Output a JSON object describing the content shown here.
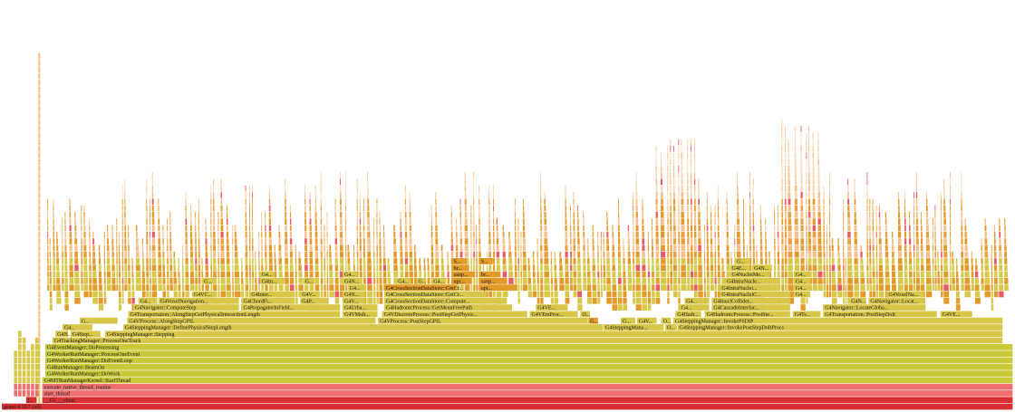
{
  "chart_data": {
    "type": "flamegraph",
    "title": "",
    "xlabel": "",
    "ylabel": "",
    "depth_levels": 54,
    "colors": {
      "root": "#d83030",
      "native": "#f07070",
      "run_manager": "#c9c93a",
      "mid": "#d8c84a",
      "upper": "#e29a28",
      "hot": "#e85a6a",
      "tip": "#f5c08a"
    },
    "frames": [
      {
        "label": "geant-4.10.5 (all)",
        "start": 0.0,
        "end": 1.0,
        "depth": 0,
        "kind": "root"
      },
      {
        "label": "[...",
        "start": 0.024,
        "end": 0.035,
        "depth": 1,
        "kind": "root"
      },
      {
        "label": "__GI___clone",
        "start": 0.04,
        "end": 1.0,
        "depth": 1,
        "kind": "root"
      },
      {
        "label": "start_thread",
        "start": 0.04,
        "end": 1.0,
        "depth": 2,
        "kind": "native"
      },
      {
        "label": "execute_native_thread_routine",
        "start": 0.04,
        "end": 1.0,
        "depth": 3,
        "kind": "native"
      },
      {
        "label": "G4MTRunManagerKernel::StartThread",
        "start": 0.04,
        "end": 1.0,
        "depth": 4,
        "kind": "run_manager"
      },
      {
        "label": "G4WorkerRunManager::DoWork",
        "start": 0.043,
        "end": 1.0,
        "depth": 5,
        "kind": "run_manager"
      },
      {
        "label": "G4RunManager::BeamOn",
        "start": 0.043,
        "end": 1.0,
        "depth": 6,
        "kind": "run_manager"
      },
      {
        "label": "G4WorkerRunManager::DoEventLoop",
        "start": 0.043,
        "end": 1.0,
        "depth": 7,
        "kind": "run_manager"
      },
      {
        "label": "G4WorkerRunManager::ProcessOneEvent",
        "start": 0.043,
        "end": 1.0,
        "depth": 8,
        "kind": "run_manager"
      },
      {
        "label": "G4EventManager::DoProcessing",
        "start": 0.043,
        "end": 1.0,
        "depth": 9,
        "kind": "run_manager"
      },
      {
        "label": "G4TrackingManager::ProcessOneTrack",
        "start": 0.05,
        "end": 0.99,
        "depth": 10,
        "kind": "mid"
      },
      {
        "label": "G4N...",
        "start": 0.053,
        "end": 0.066,
        "depth": 11,
        "kind": "mid"
      },
      {
        "label": "G4Step...",
        "start": 0.068,
        "end": 0.098,
        "depth": 11,
        "kind": "mid"
      },
      {
        "label": "G4SteppingManager::Stepping",
        "start": 0.102,
        "end": 0.99,
        "depth": 11,
        "kind": "mid"
      },
      {
        "label": "G4...",
        "start": 0.06,
        "end": 0.09,
        "depth": 12,
        "kind": "mid"
      },
      {
        "label": "G4SteppingManager::DefinePhysicalStepLength",
        "start": 0.12,
        "end": 0.595,
        "depth": 12,
        "kind": "mid"
      },
      {
        "label": "G4SteppingMana...",
        "start": 0.595,
        "end": 0.655,
        "depth": 12,
        "kind": "mid"
      },
      {
        "label": "O...",
        "start": 0.656,
        "end": 0.668,
        "depth": 12,
        "kind": "mid"
      },
      {
        "label": "G4SteppingManager::InvokePostStepDoItProcs",
        "start": 0.668,
        "end": 0.99,
        "depth": 12,
        "kind": "mid"
      },
      {
        "label": "G...",
        "start": 0.077,
        "end": 0.115,
        "depth": 13,
        "kind": "mid"
      },
      {
        "label": "G4VProcess::AlongStepGPIL",
        "start": 0.124,
        "end": 0.37,
        "depth": 13,
        "kind": "mid"
      },
      {
        "label": "G4VProcess::PostStepGPIL",
        "start": 0.372,
        "end": 0.58,
        "depth": 13,
        "kind": "mid"
      },
      {
        "label": "G...",
        "start": 0.58,
        "end": 0.59,
        "depth": 13,
        "kind": "upper"
      },
      {
        "label": "G...",
        "start": 0.612,
        "end": 0.627,
        "depth": 13,
        "kind": "mid"
      },
      {
        "label": "G4V...",
        "start": 0.628,
        "end": 0.648,
        "depth": 13,
        "kind": "mid"
      },
      {
        "label": "O...",
        "start": 0.652,
        "end": 0.662,
        "depth": 13,
        "kind": "mid"
      },
      {
        "label": "G4SteppingManager::InvokePSDIP",
        "start": 0.664,
        "end": 0.99,
        "depth": 13,
        "kind": "mid"
      },
      {
        "label": "G4Transportation::AlongStepGetPhysicalInteractionLength",
        "start": 0.125,
        "end": 0.335,
        "depth": 14,
        "kind": "mid"
      },
      {
        "label": "G4VMult...",
        "start": 0.337,
        "end": 0.372,
        "depth": 14,
        "kind": "mid"
      },
      {
        "label": "G4VDiscreteProcess::PostStepGetPhysic...",
        "start": 0.376,
        "end": 0.52,
        "depth": 14,
        "kind": "mid"
      },
      {
        "label": "G4VEmProc...",
        "start": 0.522,
        "end": 0.57,
        "depth": 14,
        "kind": "mid"
      },
      {
        "label": "O...",
        "start": 0.572,
        "end": 0.582,
        "depth": 14,
        "kind": "mid"
      },
      {
        "label": "G...",
        "start": 0.668,
        "end": 0.68,
        "depth": 14,
        "kind": "mid"
      },
      {
        "label": "G4Hadr...",
        "start": 0.666,
        "end": 0.692,
        "depth": 14,
        "kind": "mid"
      },
      {
        "label": "G4HadronicProcess::PostSte...",
        "start": 0.695,
        "end": 0.78,
        "depth": 14,
        "kind": "mid"
      },
      {
        "label": "G4Ts...",
        "start": 0.782,
        "end": 0.81,
        "depth": 14,
        "kind": "mid"
      },
      {
        "label": "G4Transportation::PostStepDoIt",
        "start": 0.812,
        "end": 0.925,
        "depth": 14,
        "kind": "mid"
      },
      {
        "label": "G4VE...",
        "start": 0.928,
        "end": 0.96,
        "depth": 14,
        "kind": "mid"
      },
      {
        "label": "G4Navigator::ComputeStep",
        "start": 0.13,
        "end": 0.235,
        "depth": 15,
        "kind": "mid"
      },
      {
        "label": "G4PropagatorInField...",
        "start": 0.237,
        "end": 0.335,
        "depth": 15,
        "kind": "mid"
      },
      {
        "label": "G4Urba...",
        "start": 0.337,
        "end": 0.372,
        "depth": 15,
        "kind": "mid"
      },
      {
        "label": "G4HadronicProcess::GetMeanFreePath",
        "start": 0.378,
        "end": 0.505,
        "depth": 15,
        "kind": "mid"
      },
      {
        "label": "G4VE...",
        "start": 0.528,
        "end": 0.56,
        "depth": 15,
        "kind": "mid"
      },
      {
        "label": "G4...",
        "start": 0.67,
        "end": 0.7,
        "depth": 15,
        "kind": "mid"
      },
      {
        "label": "G4CascadeInterfac...",
        "start": 0.702,
        "end": 0.78,
        "depth": 15,
        "kind": "mid"
      },
      {
        "label": "G4Navigator::LocateGloba...",
        "start": 0.812,
        "end": 0.91,
        "depth": 15,
        "kind": "mid"
      },
      {
        "label": "G4...",
        "start": 0.135,
        "end": 0.15,
        "depth": 16,
        "kind": "mid"
      },
      {
        "label": "G4VoxelNavigation...",
        "start": 0.155,
        "end": 0.235,
        "depth": 16,
        "kind": "mid"
      },
      {
        "label": "G4ChordFi...",
        "start": 0.237,
        "end": 0.29,
        "depth": 16,
        "kind": "mid"
      },
      {
        "label": "G4P...",
        "start": 0.295,
        "end": 0.323,
        "depth": 16,
        "kind": "mid"
      },
      {
        "label": "G4V...",
        "start": 0.337,
        "end": 0.36,
        "depth": 16,
        "kind": "mid"
      },
      {
        "label": "G4CrossSectionDataStore::Compute...",
        "start": 0.378,
        "end": 0.5,
        "depth": 16,
        "kind": "mid"
      },
      {
        "label": "G4...",
        "start": 0.675,
        "end": 0.7,
        "depth": 16,
        "kind": "mid"
      },
      {
        "label": "G4InuclCollider...",
        "start": 0.702,
        "end": 0.78,
        "depth": 16,
        "kind": "mid"
      },
      {
        "label": "G4N...",
        "start": 0.838,
        "end": 0.855,
        "depth": 16,
        "kind": "mid"
      },
      {
        "label": "G4Navigator::Locat...",
        "start": 0.857,
        "end": 0.91,
        "depth": 16,
        "kind": "mid"
      },
      {
        "label": "G4VC...",
        "start": 0.188,
        "end": 0.21,
        "depth": 17,
        "kind": "mid"
      },
      {
        "label": "G4Inter...",
        "start": 0.245,
        "end": 0.29,
        "depth": 17,
        "kind": "mid"
      },
      {
        "label": "G4V...",
        "start": 0.295,
        "end": 0.315,
        "depth": 17,
        "kind": "mid"
      },
      {
        "label": "G4N...",
        "start": 0.337,
        "end": 0.36,
        "depth": 17,
        "kind": "mid"
      },
      {
        "label": "G4CrossSectionDataStore::GetCr...",
        "start": 0.378,
        "end": 0.48,
        "depth": 17,
        "kind": "mid"
      },
      {
        "label": "G4IntraNucleiC...",
        "start": 0.71,
        "end": 0.78,
        "depth": 17,
        "kind": "mid"
      },
      {
        "label": "G4...",
        "start": 0.783,
        "end": 0.8,
        "depth": 17,
        "kind": "mid"
      },
      {
        "label": "G4VoxelNa...",
        "start": 0.875,
        "end": 0.912,
        "depth": 17,
        "kind": "mid"
      },
      {
        "label": "G4CrossSectionDataStore::GetCr...",
        "start": 0.378,
        "end": 0.45,
        "depth": 18,
        "kind": "upper"
      },
      {
        "label": "upi...",
        "start": 0.472,
        "end": 0.51,
        "depth": 18,
        "kind": "upper"
      },
      {
        "label": "G4...",
        "start": 0.342,
        "end": 0.36,
        "depth": 18,
        "kind": "mid"
      },
      {
        "label": "G4IntraNuclei...",
        "start": 0.71,
        "end": 0.77,
        "depth": 18,
        "kind": "mid"
      },
      {
        "label": "G4...",
        "start": 0.783,
        "end": 0.8,
        "depth": 18,
        "kind": "mid"
      },
      {
        "label": "G...",
        "start": 0.198,
        "end": 0.21,
        "depth": 19,
        "kind": "mid"
      },
      {
        "label": "G4In...",
        "start": 0.255,
        "end": 0.28,
        "depth": 19,
        "kind": "mid"
      },
      {
        "label": "G...",
        "start": 0.298,
        "end": 0.31,
        "depth": 19,
        "kind": "mid"
      },
      {
        "label": "G4N...",
        "start": 0.337,
        "end": 0.355,
        "depth": 19,
        "kind": "mid"
      },
      {
        "label": "G4...",
        "start": 0.39,
        "end": 0.405,
        "depth": 19,
        "kind": "mid"
      },
      {
        "label": "G...",
        "start": 0.41,
        "end": 0.42,
        "depth": 19,
        "kind": "mid"
      },
      {
        "label": "G4...",
        "start": 0.425,
        "end": 0.44,
        "depth": 19,
        "kind": "mid"
      },
      {
        "label": "upi...",
        "start": 0.445,
        "end": 0.465,
        "depth": 19,
        "kind": "upper"
      },
      {
        "label": "usnp...",
        "start": 0.472,
        "end": 0.5,
        "depth": 19,
        "kind": "upper"
      },
      {
        "label": "G4IntraNucle...",
        "start": 0.715,
        "end": 0.77,
        "depth": 19,
        "kind": "mid"
      },
      {
        "label": "G4...",
        "start": 0.783,
        "end": 0.8,
        "depth": 19,
        "kind": "mid"
      },
      {
        "label": "G4...",
        "start": 0.255,
        "end": 0.27,
        "depth": 20,
        "kind": "mid"
      },
      {
        "label": "G4...",
        "start": 0.337,
        "end": 0.352,
        "depth": 20,
        "kind": "mid"
      },
      {
        "label": "usnp...",
        "start": 0.445,
        "end": 0.468,
        "depth": 20,
        "kind": "upper"
      },
      {
        "label": "br...",
        "start": 0.472,
        "end": 0.49,
        "depth": 20,
        "kind": "upper"
      },
      {
        "label": "G4NucleiMo...",
        "start": 0.72,
        "end": 0.76,
        "depth": 20,
        "kind": "mid"
      },
      {
        "label": "G4...",
        "start": 0.783,
        "end": 0.8,
        "depth": 20,
        "kind": "mid"
      },
      {
        "label": "br...",
        "start": 0.445,
        "end": 0.462,
        "depth": 21,
        "kind": "upper"
      },
      {
        "label": "G4E...",
        "start": 0.72,
        "end": 0.74,
        "depth": 21,
        "kind": "mid"
      },
      {
        "label": "G4N...",
        "start": 0.742,
        "end": 0.762,
        "depth": 21,
        "kind": "mid"
      },
      {
        "label": "G...",
        "start": 0.725,
        "end": 0.74,
        "depth": 22,
        "kind": "mid"
      },
      {
        "label": "S...",
        "start": 0.445,
        "end": 0.46,
        "depth": 22,
        "kind": "upper"
      },
      {
        "label": "S...",
        "start": 0.472,
        "end": 0.486,
        "depth": 22,
        "kind": "upper"
      }
    ]
  }
}
